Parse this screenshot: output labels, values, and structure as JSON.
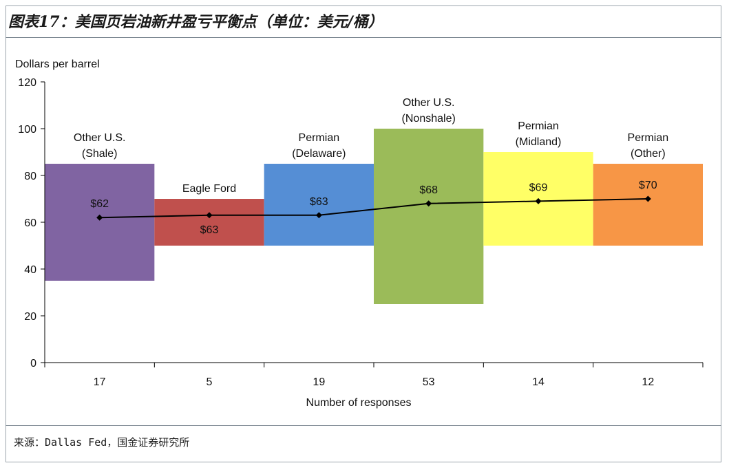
{
  "header": {
    "title": "图表17：美国页岩油新井盈亏平衡点（单位：美元/桶）"
  },
  "footer": {
    "source": "来源：Dallas Fed，国金证券研究所"
  },
  "chart_data": {
    "type": "bar",
    "ylabel": "Dollars per barrel",
    "xlabel": "Number of responses",
    "ylim": [
      0,
      120
    ],
    "yticks": [
      0,
      20,
      40,
      60,
      80,
      100,
      120
    ],
    "grid": false,
    "categories": [
      "17",
      "5",
      "19",
      "53",
      "14",
      "12"
    ],
    "regions": [
      {
        "label": [
          "Other U.S.",
          "(Shale)"
        ],
        "responses": "17",
        "low": 35,
        "high": 85,
        "breakeven": 62,
        "value_label": "$62",
        "color": "#8064a2"
      },
      {
        "label": [
          "Eagle Ford"
        ],
        "responses": "5",
        "low": 50,
        "high": 70,
        "breakeven": 63,
        "value_label": "$63",
        "color": "#c0504d"
      },
      {
        "label": [
          "Permian",
          "(Delaware)"
        ],
        "responses": "19",
        "low": 50,
        "high": 85,
        "breakeven": 63,
        "value_label": "$63",
        "color": "#558ed5"
      },
      {
        "label": [
          "Other U.S.",
          "(Nonshale)"
        ],
        "responses": "53",
        "low": 25,
        "high": 100,
        "breakeven": 68,
        "value_label": "$68",
        "color": "#9bbb59"
      },
      {
        "label": [
          "Permian",
          "(Midland)"
        ],
        "responses": "14",
        "low": 50,
        "high": 90,
        "breakeven": 69,
        "value_label": "$69",
        "color": "#ffff66"
      },
      {
        "label": [
          "Permian",
          "(Other)"
        ],
        "responses": "12",
        "low": 50,
        "high": 85,
        "breakeven": 70,
        "value_label": "$70",
        "color": "#f79646"
      }
    ],
    "line_color": "#000000"
  }
}
